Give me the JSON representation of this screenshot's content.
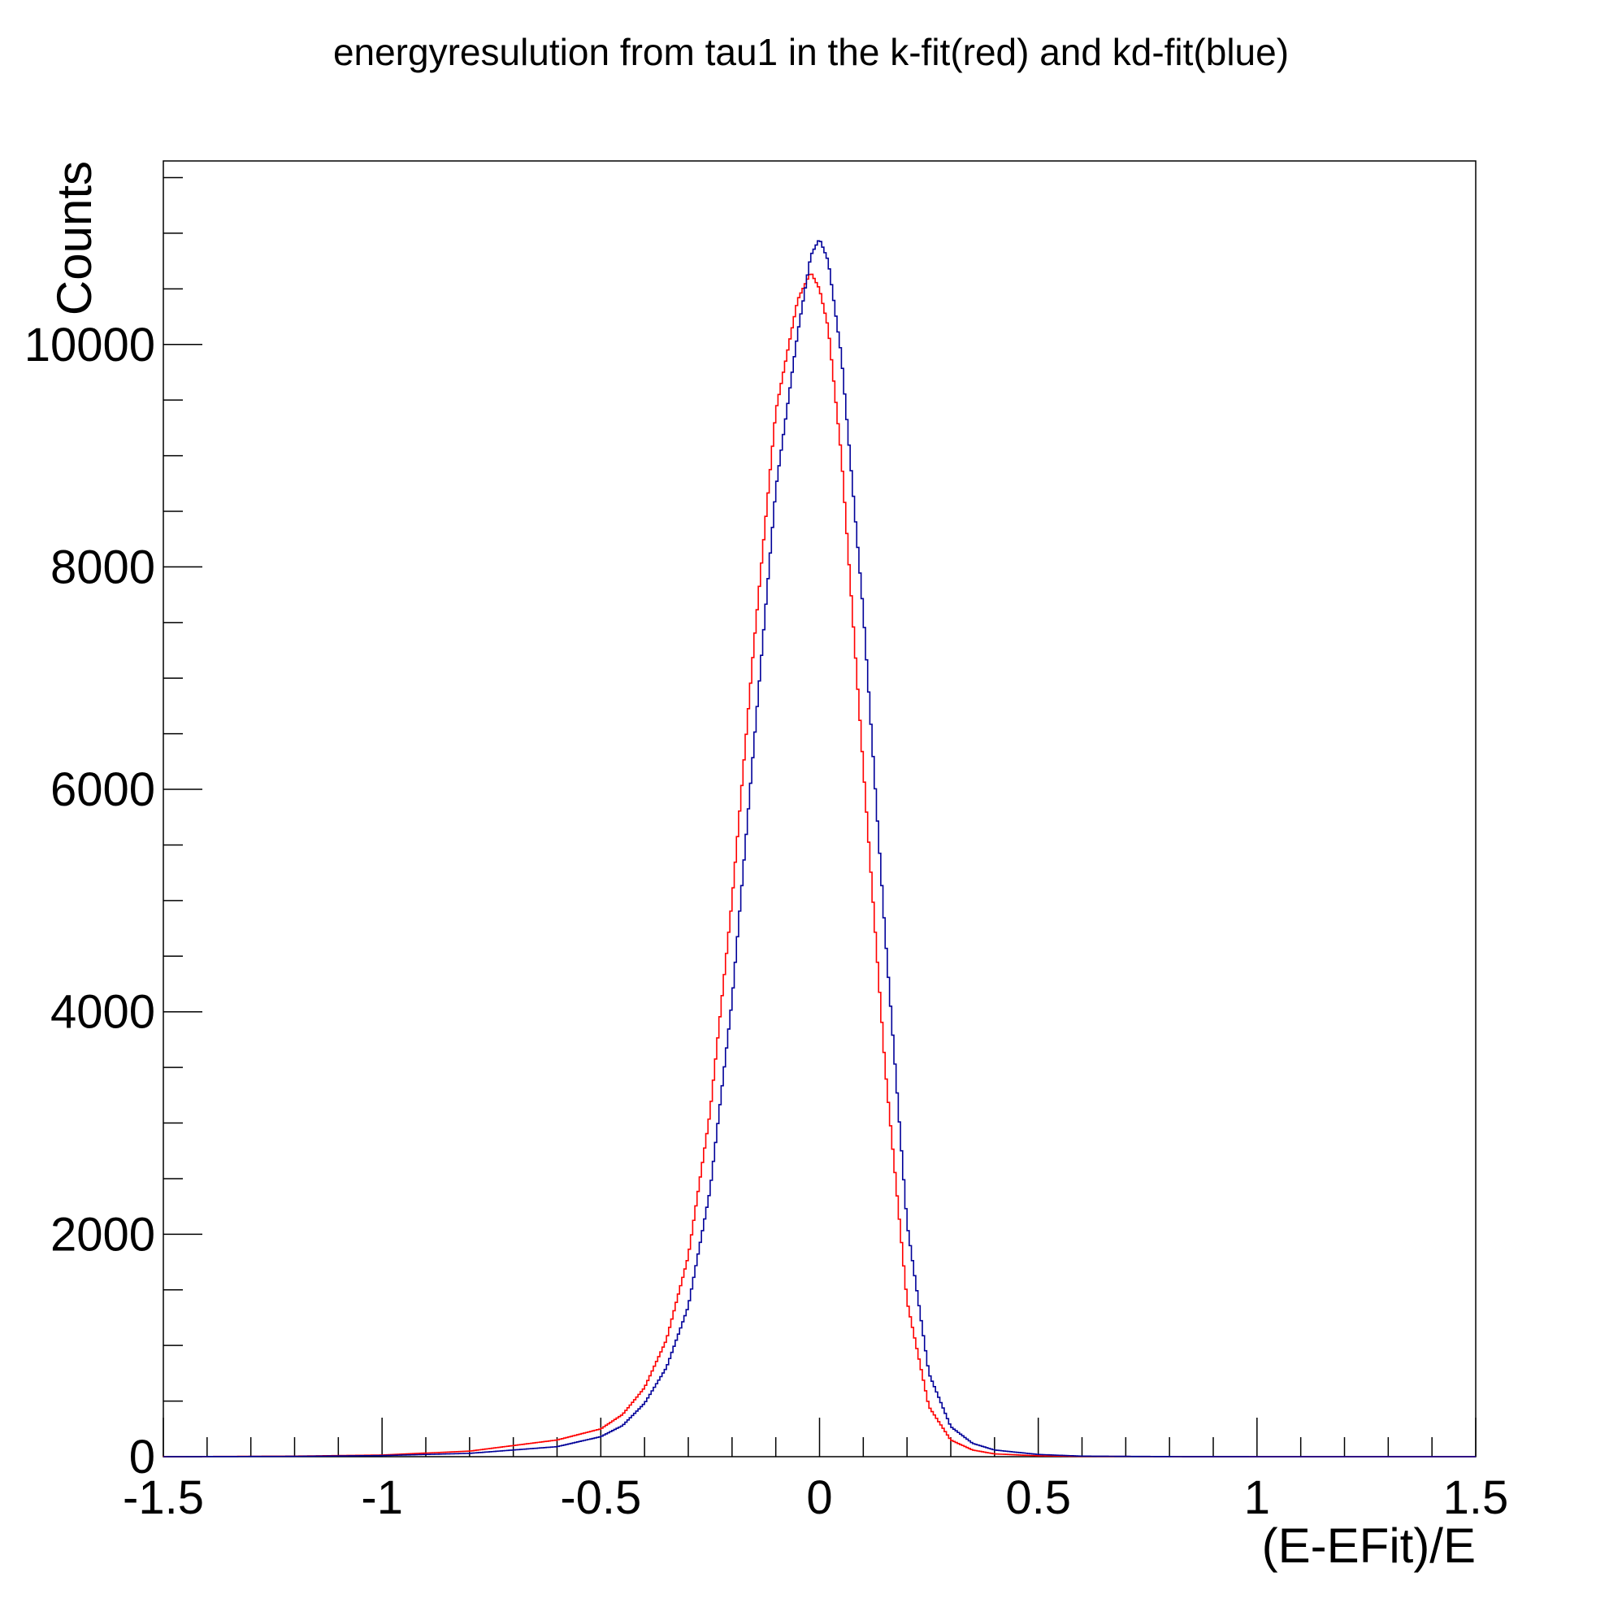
{
  "chart_data": {
    "type": "line",
    "title": "energyresulution from tau1 in the k-fit(red) and kd-fit(blue)",
    "xlabel": "(E-EFit)/E",
    "ylabel": "Counts",
    "xlim": [
      -1.5,
      1.5
    ],
    "ylim": [
      0,
      11650
    ],
    "x_ticks": [
      -1.5,
      -1,
      -0.5,
      0,
      0.5,
      1,
      1.5
    ],
    "x_tick_labels": [
      "-1.5",
      "-1",
      "-0.5",
      "0",
      "0.5",
      "1",
      "1.5"
    ],
    "y_ticks": [
      0,
      2000,
      4000,
      6000,
      8000,
      10000
    ],
    "y_tick_labels": [
      "0",
      "2000",
      "4000",
      "6000",
      "8000",
      "10000"
    ],
    "grid": false,
    "legend": "none",
    "series": [
      {
        "color": "#ff0000",
        "x": [
          -1.5,
          -1.2,
          -1.0,
          -0.8,
          -0.6,
          -0.5,
          -0.45,
          -0.4,
          -0.35,
          -0.3,
          -0.25,
          -0.2,
          -0.15,
          -0.1,
          -0.05,
          -0.02,
          0.0,
          0.02,
          0.05,
          0.1,
          0.15,
          0.2,
          0.25,
          0.3,
          0.35,
          0.4,
          0.5,
          0.6,
          0.8,
          1.0,
          1.5
        ],
        "values": [
          0,
          5,
          15,
          50,
          150,
          250,
          380,
          620,
          1050,
          1800,
          3100,
          5000,
          7300,
          9400,
          10400,
          10650,
          10500,
          10150,
          9000,
          6200,
          3500,
          1400,
          450,
          150,
          60,
          25,
          8,
          3,
          1,
          0,
          0
        ]
      },
      {
        "color": "#000099",
        "x": [
          -1.5,
          -1.2,
          -1.0,
          -0.8,
          -0.6,
          -0.5,
          -0.45,
          -0.4,
          -0.35,
          -0.3,
          -0.25,
          -0.2,
          -0.15,
          -0.1,
          -0.05,
          -0.02,
          0.0,
          0.02,
          0.05,
          0.1,
          0.15,
          0.2,
          0.25,
          0.3,
          0.35,
          0.4,
          0.5,
          0.6,
          0.8,
          1.0,
          1.5
        ],
        "values": [
          0,
          3,
          10,
          30,
          90,
          180,
          280,
          480,
          800,
          1350,
          2400,
          4100,
          6400,
          8700,
          10100,
          10800,
          10950,
          10750,
          9900,
          7600,
          4700,
          2100,
          750,
          270,
          120,
          60,
          20,
          5,
          1,
          0,
          0
        ]
      }
    ]
  }
}
